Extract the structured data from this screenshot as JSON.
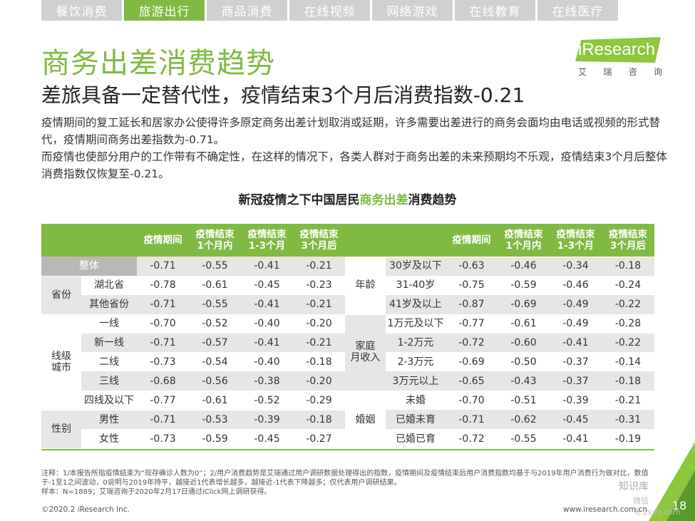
{
  "tabs": [
    {
      "label": "餐饮消费",
      "active": false
    },
    {
      "label": "旅游出行",
      "active": true
    },
    {
      "label": "商品消费",
      "active": false
    },
    {
      "label": "在线视频",
      "active": false
    },
    {
      "label": "网络游戏",
      "active": false
    },
    {
      "label": "在线教育",
      "active": false
    },
    {
      "label": "在线医疗",
      "active": false
    }
  ],
  "logo": {
    "brand": "iResearch",
    "sub": [
      "艾",
      "瑞",
      "咨",
      "询"
    ]
  },
  "title": "商务出差消费趋势",
  "subtitle": "差旅具备一定替代性，疫情结束3个月后消费指数-0.21",
  "paragraphs": [
    "疫情期间的复工延长和居家办公使得许多原定商务出差计划取消或延期，许多需要出差进行的商务会面均由电话或视频的形式替代，疫情期间商务出差指数为-0.71。",
    "而疫情也使部分用户的工作带有不确定性，在这样的情况下，各类人群对于商务出差的未来预期均不乐观，疫情结束3个月后整体消费指数仅恢复至-0.21。"
  ],
  "table_title": {
    "before": "新冠疫情之下中国居民",
    "highlight": "商务出差",
    "after": "消费趋势"
  },
  "table": {
    "headers": [
      "疫情期间",
      "疫情结束\n1个月内",
      "疫情结束\n1-3个月",
      "疫情结束\n3个月后"
    ],
    "left_rows": [
      {
        "group": "",
        "label": "整体",
        "values": [
          "-0.71",
          "-0.55",
          "-0.41",
          "-0.21"
        ]
      },
      {
        "group": "省份",
        "label": "湖北省",
        "values": [
          "-0.78",
          "-0.61",
          "-0.45",
          "-0.23"
        ]
      },
      {
        "group": "省份",
        "label": "其他省份",
        "values": [
          "-0.71",
          "-0.55",
          "-0.41",
          "-0.21"
        ]
      },
      {
        "group": "线级\n城市",
        "label": "一线",
        "values": [
          "-0.70",
          "-0.52",
          "-0.40",
          "-0.20"
        ]
      },
      {
        "group": "线级\n城市",
        "label": "新一线",
        "values": [
          "-0.71",
          "-0.57",
          "-0.41",
          "-0.21"
        ]
      },
      {
        "group": "线级\n城市",
        "label": "二线",
        "values": [
          "-0.73",
          "-0.54",
          "-0.40",
          "-0.18"
        ]
      },
      {
        "group": "线级\n城市",
        "label": "三线",
        "values": [
          "-0.68",
          "-0.56",
          "-0.38",
          "-0.20"
        ]
      },
      {
        "group": "线级\n城市",
        "label": "四线及以下",
        "values": [
          "-0.77",
          "-0.61",
          "-0.52",
          "-0.29"
        ]
      },
      {
        "group": "性别",
        "label": "男性",
        "values": [
          "-0.71",
          "-0.53",
          "-0.39",
          "-0.18"
        ]
      },
      {
        "group": "性别",
        "label": "女性",
        "values": [
          "-0.73",
          "-0.59",
          "-0.45",
          "-0.27"
        ]
      }
    ],
    "right_rows": [
      {
        "group": "年龄",
        "label": "30岁及以下",
        "values": [
          "-0.63",
          "-0.46",
          "-0.34",
          "-0.18"
        ]
      },
      {
        "group": "年龄",
        "label": "31-40岁",
        "values": [
          "-0.75",
          "-0.59",
          "-0.46",
          "-0.24"
        ]
      },
      {
        "group": "年龄",
        "label": "41岁及以上",
        "values": [
          "-0.87",
          "-0.69",
          "-0.49",
          "-0.22"
        ]
      },
      {
        "group": "家庭\n月收入",
        "label": "1万元及以下",
        "values": [
          "-0.77",
          "-0.61",
          "-0.49",
          "-0.28"
        ]
      },
      {
        "group": "家庭\n月收入",
        "label": "1-2万元",
        "values": [
          "-0.72",
          "-0.60",
          "-0.41",
          "-0.22"
        ]
      },
      {
        "group": "家庭\n月收入",
        "label": "2-3万元",
        "values": [
          "-0.69",
          "-0.50",
          "-0.37",
          "-0.14"
        ]
      },
      {
        "group": "家庭\n月收入",
        "label": "3万元以上",
        "values": [
          "-0.65",
          "-0.43",
          "-0.37",
          "-0.18"
        ]
      },
      {
        "group": "婚姻",
        "label": "未婚",
        "values": [
          "-0.70",
          "-0.51",
          "-0.39",
          "-0.21"
        ]
      },
      {
        "group": "婚姻",
        "label": "已婚未育",
        "values": [
          "-0.71",
          "-0.62",
          "-0.45",
          "-0.31"
        ]
      },
      {
        "group": "婚姻",
        "label": "已婚已育",
        "values": [
          "-0.72",
          "-0.55",
          "-0.41",
          "-0.19"
        ]
      }
    ]
  },
  "footnote": [
    "注释：1/本报告所指疫情结束为“现存确诊人数为0”；2/用户消费趋势是艾瑞通过用户调研数据处理得出的指数，疫情期间及疫情结束后用户消费指数均基于与2019年用户消费行为做对比，数值于-1至1之间波动，0说明与2019年持平，越接近1代表增长越多，越接近-1代表下降越多；仅代表用户调研结果。",
    "样本：N=1889；艾瑞咨询于2020年2月17日通过iClick网上调研获得。"
  ],
  "copyright": "©2020.2 iResearch Inc.",
  "website": "www.iresearch.com.cn",
  "page_number": "18",
  "watermark": {
    "line1": "知识库",
    "line2": "微信号:zsxq.com"
  },
  "colors": {
    "accent": "#7fba42",
    "gray": "#e6e6e6",
    "dark_gray": "#b8b8b8"
  }
}
